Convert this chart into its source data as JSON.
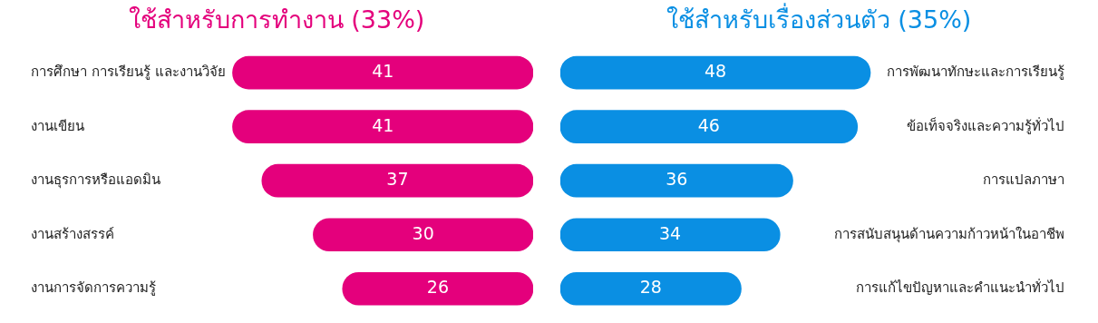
{
  "chart_data": [
    {
      "type": "bar",
      "orientation": "horizontal",
      "title": "ใช้สำหรับการทำงาน (33%)",
      "categories": [
        "การศึกษา การเรียนรู้ และงานวิจัย",
        "งานเขียน",
        "งานธุรการหรือแอดมิน",
        "งานสร้างสรรค์",
        "งานการจัดการความรู้"
      ],
      "values": [
        41,
        41,
        37,
        30,
        26
      ],
      "color": "#e4007c",
      "data_labels": true
    },
    {
      "type": "bar",
      "orientation": "horizontal",
      "title": "ใช้สำหรับเรื่องส่วนตัว (35%)",
      "categories": [
        "การพัฒนาทักษะและการเรียนรู้",
        "ข้อเท็จจริงและความรู้ทั่วไป",
        "การแปลภาษา",
        "การสนับสนุนด้านความก้าวหน้าในอาชีพ",
        "การแก้ไขปัญหาและคำแนะนำทั่วไป"
      ],
      "values": [
        48,
        46,
        36,
        34,
        28
      ],
      "color": "#0a8fe3",
      "data_labels": true
    }
  ]
}
